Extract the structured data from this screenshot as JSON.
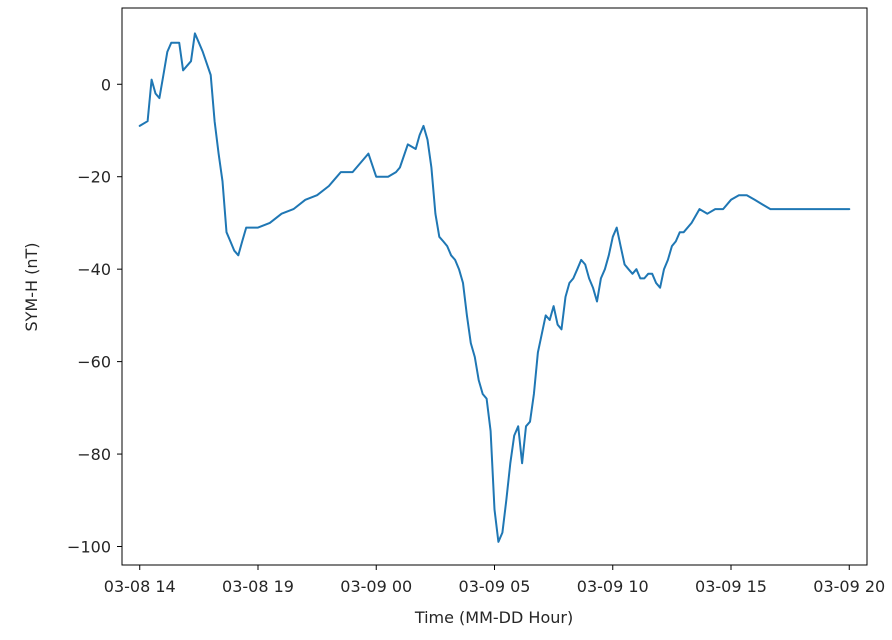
{
  "chart_data": {
    "type": "line",
    "xlabel": "Time (MM-DD Hour)",
    "ylabel": "SYM-H (nT)",
    "xlim": [
      "03-08 13:15",
      "03-09 20:45"
    ],
    "ylim": [
      -104,
      16.5
    ],
    "x_ticks": [
      {
        "at": "03-08 14:00",
        "label": "03-08 14"
      },
      {
        "at": "03-08 19:00",
        "label": "03-08 19"
      },
      {
        "at": "03-09 00:00",
        "label": "03-09 00"
      },
      {
        "at": "03-09 05:00",
        "label": "03-09 05"
      },
      {
        "at": "03-09 10:00",
        "label": "03-09 10"
      },
      {
        "at": "03-09 15:00",
        "label": "03-09 15"
      },
      {
        "at": "03-09 20:00",
        "label": "03-09 20"
      }
    ],
    "y_ticks": [
      0,
      -20,
      -40,
      -60,
      -80,
      -100
    ],
    "grid": false,
    "colors": {
      "line": "#1f77b4",
      "axes": "#000000"
    },
    "series": [
      {
        "x": [
          "03-08 14:00",
          "03-08 14:20",
          "03-08 14:30",
          "03-08 14:40",
          "03-08 14:50",
          "03-08 15:00",
          "03-08 15:10",
          "03-08 15:20",
          "03-08 15:40",
          "03-08 15:50",
          "03-08 16:00",
          "03-08 16:10",
          "03-08 16:20",
          "03-08 16:30",
          "03-08 16:40",
          "03-08 17:00",
          "03-08 17:10",
          "03-08 17:20",
          "03-08 17:30",
          "03-08 17:40",
          "03-08 17:50",
          "03-08 18:00",
          "03-08 18:10",
          "03-08 18:20",
          "03-08 18:30",
          "03-08 18:40",
          "03-08 18:50",
          "03-08 19:00",
          "03-08 19:30",
          "03-08 20:00",
          "03-08 20:30",
          "03-08 21:00",
          "03-08 21:30",
          "03-08 22:00",
          "03-08 22:10",
          "03-08 22:30",
          "03-08 23:00",
          "03-08 23:20",
          "03-08 23:40",
          "03-09 00:00",
          "03-09 00:30",
          "03-09 00:50",
          "03-09 01:00",
          "03-09 01:20",
          "03-09 01:40",
          "03-09 01:50",
          "03-09 02:00",
          "03-09 02:10",
          "03-09 02:20",
          "03-09 02:30",
          "03-09 02:40",
          "03-09 02:50",
          "03-09 03:00",
          "03-09 03:10",
          "03-09 03:20",
          "03-09 03:30",
          "03-09 03:40",
          "03-09 03:50",
          "03-09 04:00",
          "03-09 04:10",
          "03-09 04:20",
          "03-09 04:30",
          "03-09 04:40",
          "03-09 04:50",
          "03-09 05:00",
          "03-09 05:10",
          "03-09 05:20",
          "03-09 05:30",
          "03-09 05:40",
          "03-09 05:50",
          "03-09 06:00",
          "03-09 06:10",
          "03-09 06:20",
          "03-09 06:30",
          "03-09 06:40",
          "03-09 06:50",
          "03-09 07:00",
          "03-09 07:10",
          "03-09 07:20",
          "03-09 07:30",
          "03-09 07:40",
          "03-09 07:50",
          "03-09 08:00",
          "03-09 08:10",
          "03-09 08:20",
          "03-09 08:30",
          "03-09 08:40",
          "03-09 08:50",
          "03-09 09:00",
          "03-09 09:10",
          "03-09 09:20",
          "03-09 09:30",
          "03-09 09:40",
          "03-09 09:50",
          "03-09 10:00",
          "03-09 10:10",
          "03-09 10:20",
          "03-09 10:30",
          "03-09 10:40",
          "03-09 10:50",
          "03-09 11:00",
          "03-09 11:10",
          "03-09 11:20",
          "03-09 11:30",
          "03-09 11:40",
          "03-09 11:50",
          "03-09 12:00",
          "03-09 12:10",
          "03-09 12:20",
          "03-09 12:30",
          "03-09 12:40",
          "03-09 12:50",
          "03-09 13:00",
          "03-09 13:20",
          "03-09 13:40",
          "03-09 14:00",
          "03-09 14:20",
          "03-09 14:40",
          "03-09 15:00",
          "03-09 15:20",
          "03-09 15:40",
          "03-09 16:00",
          "03-09 16:20",
          "03-09 16:40",
          "03-09 17:00",
          "03-09 17:20",
          "03-09 17:40",
          "03-09 18:00",
          "03-09 18:20",
          "03-09 18:40",
          "03-09 19:00",
          "03-09 19:20",
          "03-09 19:40",
          "03-09 20:00"
        ],
        "y": [
          -9,
          -8,
          1,
          -2,
          -3,
          2,
          7,
          9,
          9,
          3,
          4,
          5,
          11,
          9,
          7,
          2,
          -8,
          -15,
          -21,
          -32,
          -34,
          -36,
          -37,
          -34,
          -31,
          -31,
          -31,
          -31,
          -30,
          -28,
          -27,
          -25,
          -24,
          -22,
          -21,
          -19,
          -19,
          -17,
          -15,
          -20,
          -20,
          -19,
          -18,
          -13,
          -14,
          -11,
          -9,
          -12,
          -18,
          -28,
          -33,
          -34,
          -35,
          -37,
          -38,
          -40,
          -43,
          -50,
          -56,
          -59,
          -64,
          -67,
          -68,
          -75,
          -92,
          -99,
          -97,
          -90,
          -82,
          -76,
          -74,
          -82,
          -74,
          -73,
          -67,
          -58,
          -54,
          -50,
          -51,
          -48,
          -52,
          -53,
          -46,
          -43,
          -42,
          -40,
          -38,
          -39,
          -42,
          -44,
          -47,
          -42,
          -40,
          -37,
          -33,
          -31,
          -35,
          -39,
          -40,
          -41,
          -40,
          -42,
          -42,
          -41,
          -41,
          -43,
          -44,
          -40,
          -38,
          -35,
          -34,
          -32,
          -32,
          -30,
          -27,
          -28,
          -27,
          -27,
          -25,
          -24,
          -24,
          -25,
          -26,
          -27,
          -27,
          -27,
          -27,
          -27,
          -27,
          -27,
          -27,
          -27,
          -27,
          -27
        ]
      }
    ]
  }
}
